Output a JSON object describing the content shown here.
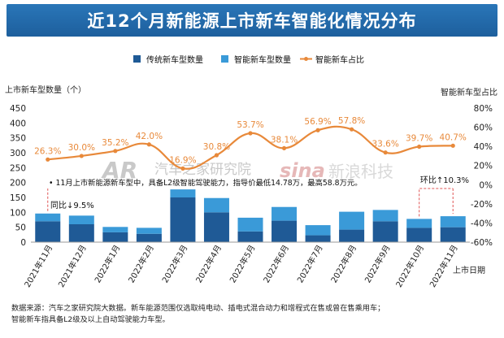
{
  "title": "近12个月新能源上市新车智能化情况分布",
  "chart_data": {
    "type": "bar",
    "categories": [
      "2021年11月",
      "2021年12月",
      "2022年1月",
      "2022年2月",
      "2022年3月",
      "2022年4月",
      "2022年5月",
      "2022年6月",
      "2022年7月",
      "2022年8月",
      "2022年9月",
      "2022年10月",
      "2022年11月"
    ],
    "series": [
      {
        "name": "传统新车型数量",
        "type": "bar",
        "color": "#1f5a96",
        "values": [
          70,
          60,
          33,
          28,
          150,
          100,
          36,
          72,
          23,
          42,
          70,
          48,
          50
        ]
      },
      {
        "name": "智能新车型数量",
        "type": "bar",
        "color": "#3a9ad8",
        "values": [
          26,
          29,
          18,
          20,
          27,
          48,
          46,
          46,
          34,
          60,
          38,
          30,
          37
        ]
      },
      {
        "name": "智能新车占比",
        "type": "line",
        "axis": "right",
        "color": "#e8893a",
        "values": [
          26.3,
          30.0,
          35.2,
          42.0,
          16.9,
          30.8,
          53.7,
          38.1,
          56.9,
          57.8,
          33.6,
          39.7,
          40.7
        ]
      }
    ],
    "point_labels": [
      "26.3%",
      "30.0%",
      "35.2%",
      "42.0%",
      "16.9%",
      "30.8%",
      "53.7%",
      "38.1%",
      "56.9%",
      "57.8%",
      "33.6%",
      "39.7%",
      "40.7%"
    ],
    "ylabel_left": "上市新车型数量（个）",
    "ylabel_right": "智能新车型占比",
    "xlabel": "上市日期",
    "ylim_left": [
      0,
      450
    ],
    "ylim_right": [
      -60,
      80
    ],
    "left_ticks": [
      "0",
      "50",
      "100",
      "150",
      "200",
      "250",
      "300",
      "350",
      "400",
      "450"
    ],
    "right_ticks": [
      "-60%",
      "-40%",
      "-20%",
      "0%",
      "20%",
      "40%",
      "60%",
      "80%"
    ],
    "left_tick_values": [
      0,
      50,
      100,
      150,
      200,
      250,
      300,
      350,
      400,
      450
    ],
    "right_tick_values": [
      -60,
      -40,
      -20,
      0,
      20,
      40,
      60,
      80
    ],
    "legend_position": "top-center",
    "annotations": {
      "note": "• 11月上市新能源新车型中，具备L2级智能驾驶能力，指导价最低14.78万，最高58.8万元。",
      "yoy": "同比↓9.5%",
      "mom": "环比↑10.3%"
    }
  },
  "watermarks": {
    "autohome_logo": "AR",
    "autohome_text": "汽车之家研究院",
    "sina_logo": "sina",
    "sina_text": "新浪科技"
  },
  "source_lines": [
    "数据来源：汽车之家研究院大数据。新车能源范围仅选取纯电动、插电式混合动力和增程式在售或曾在售乘用车；",
    "智能新车指具备L2级及以上自动驾驶能力车型。"
  ]
}
